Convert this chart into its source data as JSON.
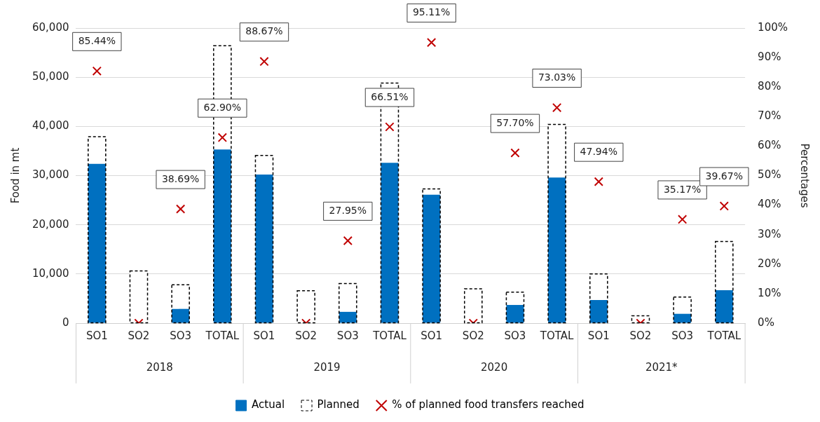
{
  "chart_data": {
    "type": "bar",
    "ylabel": "Food in mt",
    "y2label": "Percentages",
    "categories": [
      "SO1",
      "SO2",
      "SO3",
      "TOTAL",
      "SO1",
      "SO2",
      "SO3",
      "TOTAL",
      "SO1",
      "SO2",
      "SO3",
      "TOTAL",
      "SO1",
      "SO2",
      "SO3",
      "TOTAL"
    ],
    "annotations": [
      "2018",
      "2019",
      "2020",
      "2021*"
    ],
    "series": [
      {
        "name": "Actual",
        "color": "#0070c0",
        "values": [
          32400,
          0,
          2900,
          35300,
          30200,
          0,
          2300,
          32600,
          26100,
          0,
          3700,
          29600,
          4700,
          0,
          1900,
          6700
        ]
      },
      {
        "name": "Planned",
        "color": "#000000",
        "line_style": "dashed",
        "values": [
          37900,
          10600,
          7800,
          56400,
          34100,
          6600,
          8050,
          48800,
          27300,
          7000,
          6300,
          40400,
          10000,
          1500,
          5300,
          16600
        ]
      },
      {
        "name": "% of planned food transfers reached",
        "type": "scatter",
        "axis": "y2",
        "color": "#c00000",
        "marker": "cross",
        "values": [
          85.44,
          0,
          38.69,
          62.9,
          88.67,
          0,
          27.95,
          66.51,
          95.11,
          0,
          57.7,
          73.03,
          47.94,
          0,
          35.17,
          39.67
        ],
        "value_labels": [
          "85.44%",
          null,
          "38.69%",
          "62.90%",
          "88.67%",
          null,
          "27.95%",
          "66.51%",
          "95.11%",
          null,
          "57.70%",
          "73.03%",
          "47.94%",
          null,
          "35.17%",
          "39.67%"
        ]
      }
    ],
    "ylim": [
      0,
      60000
    ],
    "yticks": [
      0,
      {
        "value": 10000,
        "label": "10,000"
      },
      {
        "value": 20000,
        "label": "20,000"
      },
      {
        "value": 30000,
        "label": "30,000"
      },
      {
        "value": 40000,
        "label": "40,000"
      },
      {
        "value": 50000,
        "label": "50,000"
      },
      {
        "value": 60000,
        "label": "60,000"
      }
    ],
    "y2lim": [
      0,
      100
    ],
    "y2ticks": [
      {
        "value": 0,
        "label": "0%"
      },
      {
        "value": 10,
        "label": "10%"
      },
      {
        "value": 20,
        "label": "20%"
      },
      {
        "value": 30,
        "label": "30%"
      },
      {
        "value": 40,
        "label": "40%"
      },
      {
        "value": 50,
        "label": "50%"
      },
      {
        "value": 60,
        "label": "60%"
      },
      {
        "value": 70,
        "label": "70%"
      },
      {
        "value": 80,
        "label": "80%"
      },
      {
        "value": 90,
        "label": "90%"
      },
      {
        "value": 100,
        "label": "100%"
      }
    ],
    "grid": "y",
    "legend": "bottom"
  }
}
